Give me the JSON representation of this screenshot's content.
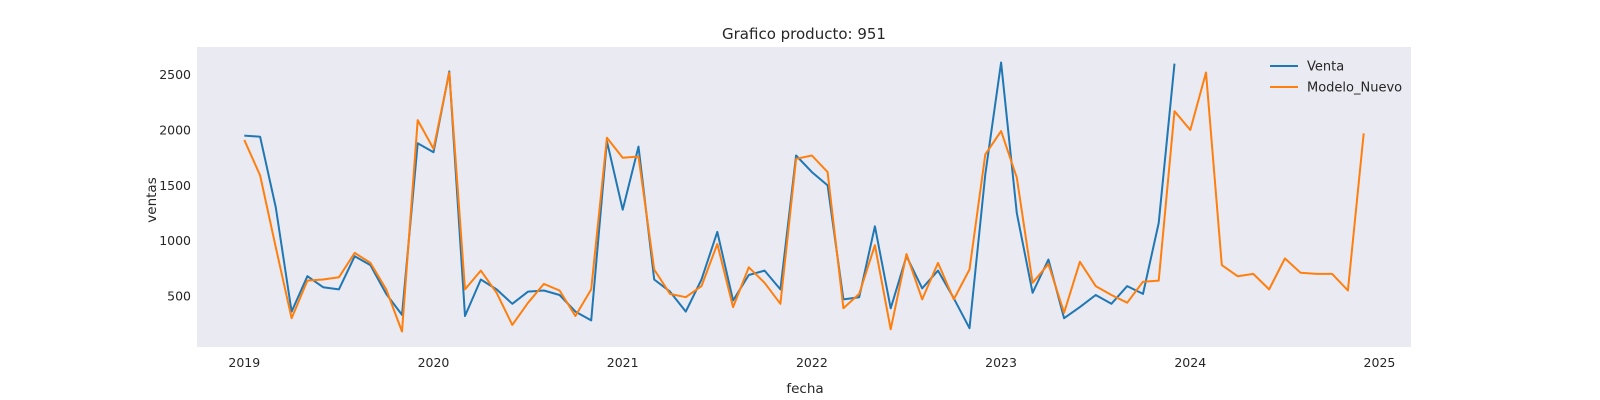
{
  "chart_data": {
    "type": "line",
    "title": "Grafico producto: 951",
    "xlabel": "fecha",
    "ylabel": "ventas",
    "x_ticks": [
      "2019",
      "2020",
      "2021",
      "2022",
      "2023",
      "2024",
      "2025"
    ],
    "y_ticks": [
      500,
      1000,
      1500,
      2000,
      2500
    ],
    "xlim": [
      "2018-10",
      "2025-03"
    ],
    "ylim": [
      40,
      2750
    ],
    "grid": false,
    "legend_position": "top-right",
    "background_color": "#eaeaf2",
    "series": [
      {
        "name": "Venta",
        "color": "#1f77b4",
        "dates": [
          "2019-01",
          "2019-02",
          "2019-03",
          "2019-04",
          "2019-05",
          "2019-06",
          "2019-07",
          "2019-08",
          "2019-09",
          "2019-10",
          "2019-11",
          "2019-12",
          "2020-01",
          "2020-02",
          "2020-03",
          "2020-04",
          "2020-05",
          "2020-06",
          "2020-07",
          "2020-08",
          "2020-09",
          "2020-10",
          "2020-11",
          "2020-12",
          "2021-01",
          "2021-02",
          "2021-03",
          "2021-04",
          "2021-05",
          "2021-06",
          "2021-07",
          "2021-08",
          "2021-09",
          "2021-10",
          "2021-11",
          "2021-12",
          "2022-01",
          "2022-02",
          "2022-03",
          "2022-04",
          "2022-05",
          "2022-06",
          "2022-07",
          "2022-08",
          "2022-09",
          "2022-10",
          "2022-11",
          "2022-12",
          "2023-01",
          "2023-02",
          "2023-03",
          "2023-04",
          "2023-05",
          "2023-06",
          "2023-07",
          "2023-08",
          "2023-09",
          "2023-10",
          "2023-11",
          "2023-12"
        ],
        "values": [
          1950,
          1940,
          1300,
          360,
          680,
          580,
          560,
          860,
          780,
          520,
          330,
          1880,
          1800,
          2530,
          320,
          650,
          560,
          430,
          540,
          550,
          510,
          360,
          280,
          1900,
          1280,
          1850,
          650,
          540,
          360,
          650,
          1080,
          460,
          690,
          730,
          560,
          1770,
          1620,
          1500,
          470,
          490,
          1130,
          390,
          860,
          570,
          730,
          480,
          210,
          1600,
          2610,
          1250,
          530,
          830,
          300,
          400,
          510,
          430,
          590,
          520,
          1160,
          2600
        ]
      },
      {
        "name": "Modelo_Nuevo",
        "color": "#ff7f0e",
        "dates": [
          "2019-01",
          "2019-02",
          "2019-03",
          "2019-04",
          "2019-05",
          "2019-06",
          "2019-07",
          "2019-08",
          "2019-09",
          "2019-10",
          "2019-11",
          "2019-12",
          "2020-01",
          "2020-02",
          "2020-03",
          "2020-04",
          "2020-05",
          "2020-06",
          "2020-07",
          "2020-08",
          "2020-09",
          "2020-10",
          "2020-11",
          "2020-12",
          "2021-01",
          "2021-02",
          "2021-03",
          "2021-04",
          "2021-05",
          "2021-06",
          "2021-07",
          "2021-08",
          "2021-09",
          "2021-10",
          "2021-11",
          "2021-12",
          "2022-01",
          "2022-02",
          "2022-03",
          "2022-04",
          "2022-05",
          "2022-06",
          "2022-07",
          "2022-08",
          "2022-09",
          "2022-10",
          "2022-11",
          "2022-12",
          "2023-01",
          "2023-02",
          "2023-03",
          "2023-04",
          "2023-05",
          "2023-06",
          "2023-07",
          "2023-08",
          "2023-09",
          "2023-10",
          "2023-11",
          "2023-12",
          "2024-01",
          "2024-02",
          "2024-03",
          "2024-04",
          "2024-05",
          "2024-06",
          "2024-07",
          "2024-08",
          "2024-09",
          "2024-10",
          "2024-11",
          "2024-12"
        ],
        "values": [
          1910,
          1590,
          940,
          300,
          640,
          650,
          670,
          890,
          800,
          560,
          180,
          2090,
          1830,
          2520,
          560,
          730,
          530,
          240,
          440,
          610,
          550,
          320,
          560,
          1930,
          1750,
          1760,
          740,
          520,
          490,
          590,
          970,
          400,
          760,
          620,
          430,
          1740,
          1770,
          1620,
          390,
          520,
          960,
          200,
          880,
          470,
          800,
          470,
          740,
          1780,
          1990,
          1570,
          620,
          790,
          350,
          810,
          590,
          510,
          440,
          630,
          640,
          2170,
          2000,
          2520,
          780,
          680,
          700,
          560,
          840,
          710,
          700,
          700,
          550,
          1970
        ]
      }
    ]
  }
}
